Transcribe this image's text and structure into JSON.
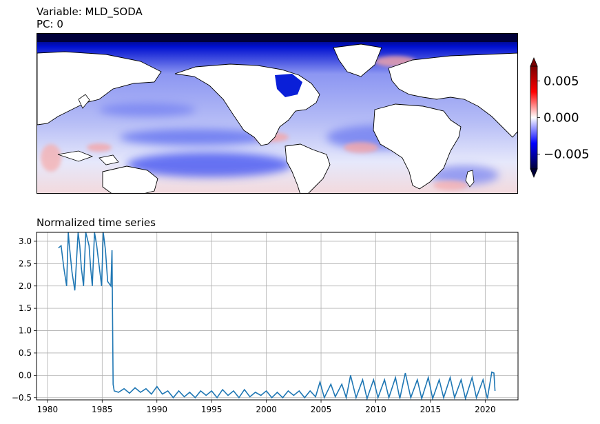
{
  "header": {
    "variable_line": "Variable: MLD_SODA",
    "pc_line": "PC: 0"
  },
  "map": {
    "description_icon": "world-map-anomaly",
    "colormap": [
      "#00003a",
      "#0000ff",
      "#ffffff",
      "#ff0000",
      "#7a0000"
    ],
    "colorbar": {
      "ticks": [
        0.005,
        0.0,
        -0.005
      ],
      "tick_labels": [
        "0.005",
        "0.000",
        "−0.005"
      ],
      "vmin": -0.007,
      "vmax": 0.007
    }
  },
  "timeseries_title": "Normalized time series",
  "chart_data": {
    "type": "line",
    "title": "Normalized time series",
    "xlabel": "",
    "ylabel": "",
    "xlim": [
      1979,
      2023
    ],
    "ylim": [
      -0.55,
      3.2
    ],
    "grid": true,
    "line_color": "#1f77b4",
    "x_ticks": [
      1980,
      1985,
      1990,
      1995,
      2000,
      2005,
      2010,
      2015,
      2020
    ],
    "y_ticks": [
      -0.5,
      0.0,
      0.5,
      1.0,
      1.5,
      2.0,
      2.5,
      3.0
    ],
    "y_tick_labels": [
      "−0.5",
      "0.0",
      "0.5",
      "1.0",
      "1.5",
      "2.0",
      "2.5",
      "3.0"
    ],
    "series": [
      {
        "x": [
          1981.0,
          1981.25,
          1981.5,
          1981.75,
          1981.9,
          1982.0,
          1982.25,
          1982.5,
          1982.8,
          1982.95,
          1983.1,
          1983.3,
          1983.5,
          1983.8,
          1983.95,
          1984.1,
          1984.3,
          1984.5,
          1984.8,
          1984.95,
          1985.1,
          1985.3,
          1985.5,
          1985.8,
          1985.9,
          1986.0,
          1986.1,
          1986.5,
          1987.0,
          1987.5,
          1988.0,
          1988.5,
          1989.0,
          1989.5,
          1990.0,
          1990.5,
          1991.0,
          1991.5,
          1992.0,
          1992.5,
          1993.0,
          1993.5,
          1994.0,
          1994.5,
          1995.0,
          1995.5,
          1996.0,
          1996.5,
          1997.0,
          1997.5,
          1998.0,
          1998.5,
          1999.0,
          1999.5,
          2000.0,
          2000.5,
          2001.0,
          2001.5,
          2002.0,
          2002.5,
          2003.0,
          2003.5,
          2004.0,
          2004.5,
          2004.9,
          2005.3,
          2005.9,
          2006.3,
          2006.9,
          2007.3,
          2007.7,
          2008.2,
          2008.8,
          2009.2,
          2009.8,
          2010.2,
          2010.8,
          2011.2,
          2011.8,
          2012.2,
          2012.7,
          2013.2,
          2013.8,
          2014.2,
          2014.8,
          2015.2,
          2015.8,
          2016.2,
          2016.8,
          2017.2,
          2017.8,
          2018.2,
          2018.8,
          2019.2,
          2019.8,
          2020.2,
          2020.6,
          2020.8,
          2020.9
        ],
        "values": [
          2.85,
          2.9,
          2.4,
          2.0,
          3.2,
          2.9,
          2.3,
          1.9,
          3.2,
          2.9,
          2.4,
          2.0,
          3.2,
          2.9,
          2.4,
          2.0,
          3.2,
          2.9,
          2.3,
          2.0,
          3.2,
          2.8,
          2.1,
          2.0,
          2.8,
          -0.2,
          -0.35,
          -0.38,
          -0.3,
          -0.4,
          -0.28,
          -0.38,
          -0.3,
          -0.42,
          -0.25,
          -0.42,
          -0.35,
          -0.5,
          -0.35,
          -0.48,
          -0.38,
          -0.5,
          -0.35,
          -0.45,
          -0.35,
          -0.5,
          -0.32,
          -0.45,
          -0.35,
          -0.5,
          -0.32,
          -0.48,
          -0.38,
          -0.45,
          -0.35,
          -0.5,
          -0.38,
          -0.5,
          -0.35,
          -0.45,
          -0.35,
          -0.5,
          -0.35,
          -0.48,
          -0.15,
          -0.5,
          -0.2,
          -0.48,
          -0.2,
          -0.5,
          0.0,
          -0.5,
          -0.1,
          -0.52,
          -0.1,
          -0.5,
          -0.1,
          -0.5,
          -0.05,
          -0.52,
          0.05,
          -0.5,
          -0.1,
          -0.52,
          -0.05,
          -0.52,
          -0.1,
          -0.5,
          -0.05,
          -0.5,
          -0.1,
          -0.52,
          -0.05,
          -0.5,
          -0.1,
          -0.52,
          0.07,
          0.05,
          -0.35
        ]
      }
    ]
  }
}
